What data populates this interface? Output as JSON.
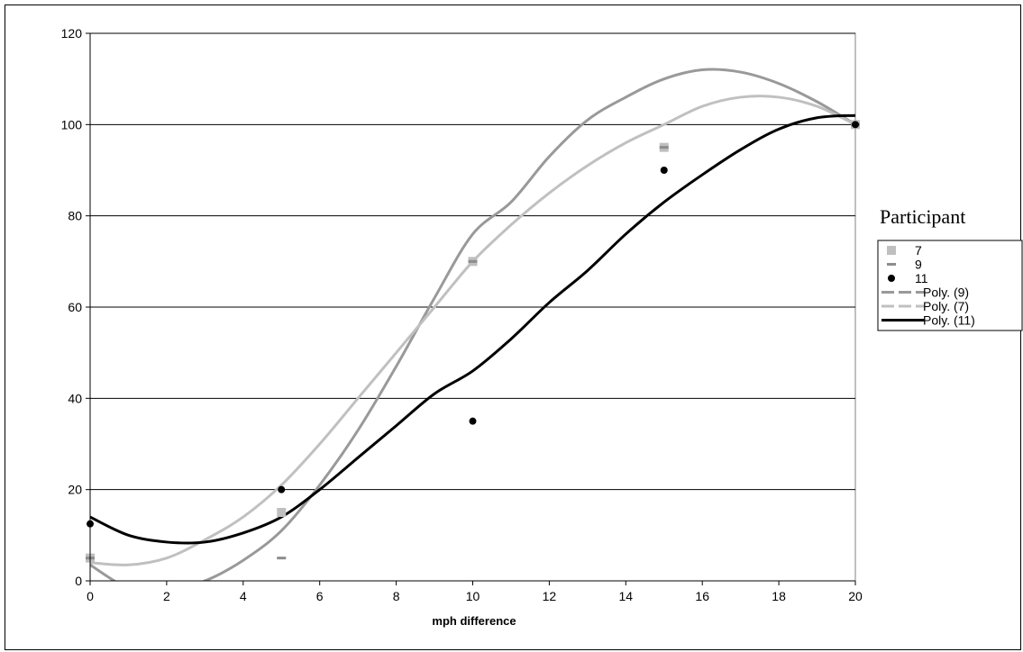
{
  "chart_data": {
    "type": "scatter",
    "title": "",
    "xlabel": "mph difference",
    "ylabel": "",
    "xlim": [
      0,
      20
    ],
    "ylim": [
      0,
      120
    ],
    "xticks": [
      0,
      2,
      4,
      6,
      8,
      10,
      12,
      14,
      16,
      18,
      20
    ],
    "yticks": [
      0,
      20,
      40,
      60,
      80,
      100,
      120
    ],
    "grid": "horizontal",
    "legend_title": "Participant",
    "legend_position": "right",
    "series": [
      {
        "name": "7",
        "marker": "square",
        "color": "#bfbfbf",
        "x": [
          0,
          5,
          10,
          15,
          20
        ],
        "y": [
          5,
          15,
          70,
          95,
          100
        ]
      },
      {
        "name": "9",
        "marker": "dash",
        "color": "#8c8c8c",
        "x": [
          0,
          5,
          10,
          15,
          20
        ],
        "y": [
          5,
          5,
          70,
          95,
          100
        ]
      },
      {
        "name": "11",
        "marker": "circle",
        "color": "#000000",
        "x": [
          0,
          5,
          10,
          15,
          20
        ],
        "y": [
          12.5,
          20,
          35,
          90,
          100
        ]
      }
    ],
    "trendlines": [
      {
        "name": "Poly. (9)",
        "of": "9",
        "color": "#999999",
        "x": [
          0,
          1,
          2,
          3,
          4,
          5,
          6,
          7,
          8,
          9,
          10,
          11,
          12,
          13,
          14,
          15,
          16,
          17,
          18,
          19,
          20
        ],
        "y": [
          3.5,
          -1.5,
          -2,
          0,
          4.5,
          11,
          21,
          33,
          47,
          62,
          76,
          83,
          93,
          101,
          106,
          110,
          112,
          111.5,
          109,
          105,
          100
        ]
      },
      {
        "name": "Poly. (7)",
        "of": "7",
        "color": "#c0c0c0",
        "x": [
          0,
          1,
          2,
          3,
          4,
          5,
          6,
          7,
          8,
          9,
          10,
          11,
          12,
          13,
          14,
          15,
          16,
          17,
          18,
          19,
          20
        ],
        "y": [
          4,
          3.5,
          5,
          9,
          14,
          21,
          30,
          40,
          50,
          60,
          70,
          78,
          85,
          91,
          96,
          100,
          104,
          106,
          106,
          104,
          100
        ]
      },
      {
        "name": "Poly. (11)",
        "of": "11",
        "color": "#000000",
        "x": [
          0,
          1,
          2,
          3,
          4,
          5,
          6,
          7,
          8,
          9,
          10,
          11,
          12,
          13,
          14,
          15,
          16,
          17,
          18,
          19,
          20
        ],
        "y": [
          14,
          10,
          8.5,
          8.5,
          10.5,
          14,
          20,
          27,
          34,
          41,
          46,
          53,
          61,
          68,
          76,
          83,
          89,
          94.5,
          99,
          101.5,
          102
        ]
      }
    ],
    "legend_order": [
      "7",
      "9",
      "11",
      "Poly. (9)",
      "Poly. (7)",
      "Poly. (11)"
    ]
  }
}
